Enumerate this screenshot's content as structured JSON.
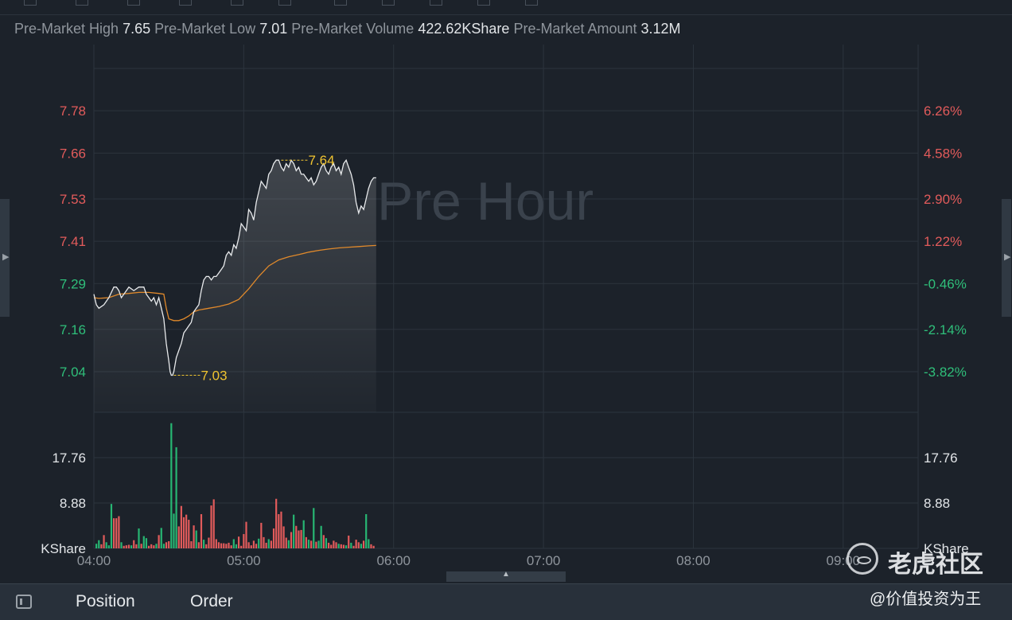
{
  "stats": [
    {
      "label": "Pre-Market High",
      "value": "7.65"
    },
    {
      "label": "Pre-Market Low",
      "value": "7.01"
    },
    {
      "label": "Pre-Market Volume",
      "value": "422.62KShare"
    },
    {
      "label": "Pre-Market Amount",
      "value": "3.12M"
    }
  ],
  "chart_data": {
    "type": "line",
    "watermark": "Pre Hour",
    "price_axis": {
      "ticks": [
        "7.78",
        "7.66",
        "7.53",
        "7.41",
        "7.29",
        "7.16",
        "7.04"
      ],
      "range": [
        6.925,
        7.9
      ]
    },
    "percent_axis": {
      "ticks": [
        "6.26%",
        "4.58%",
        "2.90%",
        "1.22%",
        "-0.46%",
        "-2.14%",
        "-3.82%"
      ]
    },
    "volume_axis": {
      "ticks": [
        "17.76",
        "8.88"
      ],
      "unit": "KShare",
      "range": [
        0,
        26.64
      ]
    },
    "x_axis": {
      "ticks": [
        "04:00",
        "05:00",
        "06:00",
        "07:00",
        "08:00",
        "09:00"
      ],
      "range": [
        240,
        570
      ]
    },
    "high_marker": {
      "time": 315,
      "value": 7.64,
      "label": "7.64"
    },
    "low_marker": {
      "time": 272,
      "value": 7.03,
      "label": "7.03"
    },
    "colors": {
      "price": "#e8eaec",
      "avg": "#e0892b",
      "up": "#e25b5b",
      "down": "#27b673",
      "marker": "#f0c430",
      "neg_axis": "#2fbf7a",
      "pos_axis": "#e25b5b",
      "grid": "#2c343d"
    },
    "series": [
      {
        "kind": "price",
        "x": [
          240,
          241,
          242,
          244,
          246,
          248,
          249,
          250,
          251,
          252,
          254,
          256,
          258,
          260,
          261,
          262,
          263,
          264,
          265,
          266,
          267,
          268,
          269,
          270,
          270.5,
          271,
          271.5,
          272,
          273,
          274,
          275,
          276,
          277,
          278,
          279,
          280,
          281,
          282,
          283,
          284,
          285,
          286,
          287,
          288,
          289,
          290,
          291,
          292,
          293,
          294,
          295,
          296,
          297,
          298,
          299,
          300,
          301,
          302,
          303,
          304,
          305,
          306,
          307,
          308,
          309,
          310,
          311,
          312,
          313,
          314,
          315,
          316,
          317,
          318,
          319,
          320,
          321,
          322,
          323,
          324,
          325,
          326,
          327,
          328,
          329,
          330,
          331,
          332,
          333,
          334,
          335,
          336,
          337,
          338,
          339,
          340,
          341,
          342,
          343,
          344,
          345,
          346,
          347,
          348,
          349,
          350,
          351,
          352,
          353
        ],
        "values": [
          7.26,
          7.23,
          7.22,
          7.23,
          7.25,
          7.28,
          7.28,
          7.27,
          7.25,
          7.26,
          7.28,
          7.27,
          7.28,
          7.28,
          7.26,
          7.25,
          7.24,
          7.25,
          7.23,
          7.25,
          7.22,
          7.19,
          7.12,
          7.07,
          7.04,
          7.03,
          7.03,
          7.04,
          7.08,
          7.1,
          7.12,
          7.15,
          7.16,
          7.17,
          7.18,
          7.21,
          7.22,
          7.23,
          7.27,
          7.3,
          7.31,
          7.31,
          7.3,
          7.31,
          7.31,
          7.32,
          7.33,
          7.34,
          7.37,
          7.38,
          7.37,
          7.4,
          7.39,
          7.42,
          7.46,
          7.45,
          7.44,
          7.5,
          7.49,
          7.47,
          7.52,
          7.55,
          7.58,
          7.57,
          7.56,
          7.6,
          7.61,
          7.63,
          7.64,
          7.64,
          7.62,
          7.61,
          7.63,
          7.62,
          7.64,
          7.63,
          7.61,
          7.62,
          7.6,
          7.6,
          7.59,
          7.58,
          7.59,
          7.57,
          7.58,
          7.6,
          7.62,
          7.63,
          7.61,
          7.6,
          7.62,
          7.63,
          7.61,
          7.62,
          7.6,
          7.63,
          7.64,
          7.62,
          7.6,
          7.57,
          7.52,
          7.49,
          7.51,
          7.5,
          7.53,
          7.56,
          7.58,
          7.59,
          7.59
        ]
      },
      {
        "kind": "average",
        "x": [
          240,
          242,
          246,
          250,
          254,
          258,
          262,
          266,
          268,
          269,
          270,
          272,
          274,
          276,
          278,
          280,
          282,
          286,
          290,
          294,
          298,
          302,
          306,
          310,
          314,
          318,
          322,
          326,
          330,
          334,
          338,
          342,
          346,
          350,
          353
        ],
        "values": [
          7.25,
          7.248,
          7.25,
          7.26,
          7.262,
          7.265,
          7.265,
          7.262,
          7.26,
          7.22,
          7.19,
          7.185,
          7.185,
          7.19,
          7.198,
          7.21,
          7.215,
          7.22,
          7.225,
          7.232,
          7.245,
          7.275,
          7.31,
          7.34,
          7.357,
          7.366,
          7.372,
          7.379,
          7.384,
          7.388,
          7.391,
          7.393,
          7.395,
          7.397,
          7.398
        ]
      }
    ],
    "volume": {
      "x": [
        241,
        242,
        243,
        244,
        245,
        246,
        247,
        248,
        249,
        250,
        251,
        252,
        253,
        254,
        255,
        256,
        257,
        258,
        259,
        260,
        261,
        262,
        263,
        264,
        265,
        266,
        267,
        268,
        269,
        270,
        271,
        272,
        273,
        274,
        275,
        276,
        277,
        278,
        279,
        280,
        281,
        282,
        283,
        284,
        285,
        286,
        287,
        288,
        289,
        290,
        291,
        292,
        293,
        294,
        295,
        296,
        297,
        298,
        299,
        300,
        301,
        302,
        303,
        304,
        305,
        306,
        307,
        308,
        309,
        310,
        311,
        312,
        313,
        314,
        315,
        316,
        317,
        318,
        319,
        320,
        321,
        322,
        323,
        324,
        325,
        326,
        327,
        328,
        329,
        330,
        331,
        332,
        333,
        334,
        335,
        336,
        337,
        338,
        339,
        340,
        341,
        342,
        343,
        344,
        345,
        346,
        347,
        348,
        349,
        350,
        351,
        352
      ],
      "values": [
        0.9,
        1.6,
        0.8,
        2.6,
        1.2,
        0.6,
        8.7,
        5.9,
        5.9,
        6.3,
        1.2,
        0.5,
        0.6,
        0.7,
        0.6,
        1.6,
        0.8,
        3.9,
        0.9,
        2.4,
        2.0,
        0.5,
        0.8,
        0.6,
        0.9,
        2.6,
        4.0,
        0.9,
        1.2,
        1.4,
        24.5,
        6.8,
        19.8,
        4.3,
        8.3,
        6.1,
        6.6,
        5.6,
        1.4,
        4.5,
        3.5,
        1.2,
        6.7,
        1.7,
        0.8,
        2.1,
        8.4,
        9.6,
        1.8,
        1.2,
        1.0,
        1.0,
        0.9,
        1.1,
        0.6,
        1.8,
        0.8,
        2.3,
        0.5,
        2.8,
        5.2,
        1.2,
        0.6,
        1.5,
        0.9,
        1.9,
        5.0,
        2.2,
        1.1,
        1.8,
        1.5,
        3.9,
        9.7,
        6.7,
        7.2,
        4.3,
        2.1,
        1.6,
        3.2,
        6.6,
        4.4,
        3.5,
        3.6,
        5.5,
        2.2,
        1.7,
        1.5,
        7.9,
        1.3,
        1.5,
        4.4,
        2.6,
        2.0,
        1.1,
        0.7,
        1.5,
        1.2,
        0.9,
        0.8,
        0.7,
        0.6,
        2.5,
        1.1,
        0.5,
        1.7,
        1.2,
        0.9,
        1.5,
        6.7,
        1.8,
        0.8,
        0.5
      ],
      "direction": [
        "d",
        "d",
        "u",
        "u",
        "d",
        "d",
        "d",
        "u",
        "u",
        "u",
        "d",
        "u",
        "u",
        "u",
        "d",
        "u",
        "u",
        "d",
        "u",
        "d",
        "d",
        "u",
        "u",
        "u",
        "d",
        "u",
        "d",
        "d",
        "u",
        "u",
        "d",
        "d",
        "d",
        "u",
        "u",
        "u",
        "u",
        "u",
        "u",
        "u",
        "d",
        "u",
        "u",
        "d",
        "u",
        "u",
        "u",
        "u",
        "u",
        "u",
        "u",
        "u",
        "u",
        "u",
        "u",
        "d",
        "d",
        "u",
        "u",
        "u",
        "u",
        "u",
        "u",
        "u",
        "u",
        "d",
        "u",
        "u",
        "u",
        "d",
        "u",
        "u",
        "u",
        "u",
        "u",
        "u",
        "u",
        "d",
        "u",
        "d",
        "u",
        "u",
        "u",
        "d",
        "u",
        "d",
        "u",
        "d",
        "u",
        "d",
        "d",
        "u",
        "d",
        "u",
        "u",
        "u",
        "u",
        "d",
        "u",
        "u",
        "d",
        "u",
        "d",
        "u",
        "u",
        "u",
        "d",
        "u",
        "d",
        "d",
        "u",
        "u"
      ]
    }
  },
  "bottom_bar": {
    "position_label": "Position",
    "order_label": "Order"
  },
  "watermark": {
    "brand": "老虎社区",
    "author": "@价值投资为王"
  }
}
